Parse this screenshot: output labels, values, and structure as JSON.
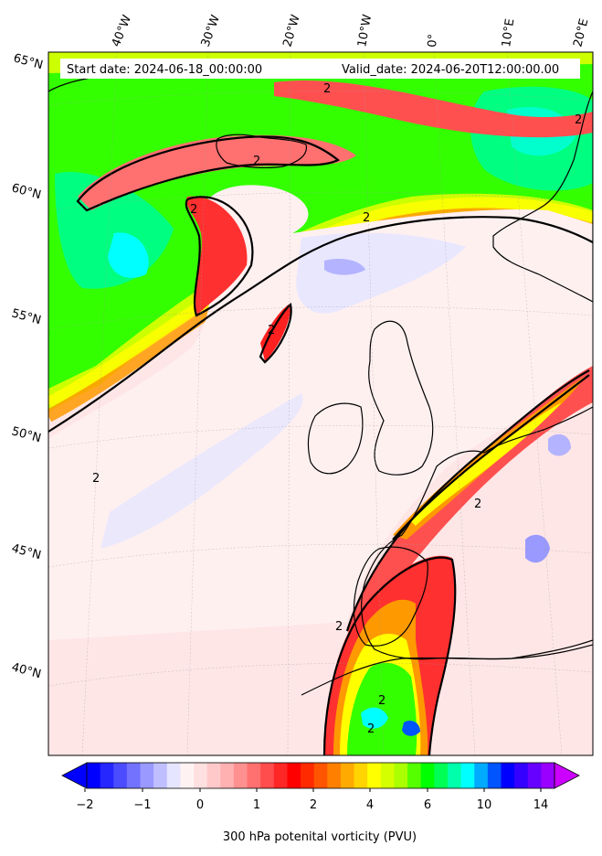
{
  "map": {
    "header": {
      "start_date": "Start date: 2024-06-18_00:00:00",
      "valid_date": "Valid_date: 2024-06-20T12:00:00.00"
    },
    "lon_labels": [
      "40°W",
      "30°W",
      "20°W",
      "10°W",
      "0°",
      "10°E",
      "20°E"
    ],
    "lat_labels": [
      "65°N",
      "60°N",
      "55°N",
      "50°N",
      "45°N",
      "40°N"
    ],
    "contour_value_label": "2",
    "colorbar": {
      "tick_labels": [
        "−2",
        "−1",
        "0",
        "1",
        "2",
        "4",
        "6",
        "10",
        "14"
      ],
      "label": "300 hPa potenital vorticity (PVU)",
      "colors": [
        "#0000ff",
        "#2626ff",
        "#4c4cff",
        "#7272ff",
        "#9999ff",
        "#bfbfff",
        "#e5e5ff",
        "#fff2f2",
        "#ffe0e0",
        "#ffc9c9",
        "#ffb0b0",
        "#ff9090",
        "#ff7070",
        "#ff4c4c",
        "#ff2626",
        "#ff0000",
        "#ff2a00",
        "#ff5500",
        "#ff8000",
        "#ffaa00",
        "#ffd400",
        "#ffff00",
        "#d4ff00",
        "#aaff00",
        "#55ff00",
        "#00ff00",
        "#00ff55",
        "#00ffaa",
        "#00ffff",
        "#00aaff",
        "#0055ff",
        "#0000ff",
        "#3300ff",
        "#6600ff",
        "#9900ff"
      ],
      "under_color": "#0000ff",
      "over_color": "#cc00ff"
    },
    "field_colors": {
      "background": "#ffe6e6",
      "pale": "#fff0f0",
      "lavender": "#e6e6ff",
      "blue_light": "#b3b3ff",
      "pink": "#ffb3b3",
      "salmon": "#ff8080",
      "red": "#ff2020",
      "orange": "#ff9900",
      "yellow": "#ffff00",
      "yellowgreen": "#ccff00",
      "green": "#33ff00",
      "springgreen": "#00ff80",
      "cyan": "#00ffff"
    }
  }
}
